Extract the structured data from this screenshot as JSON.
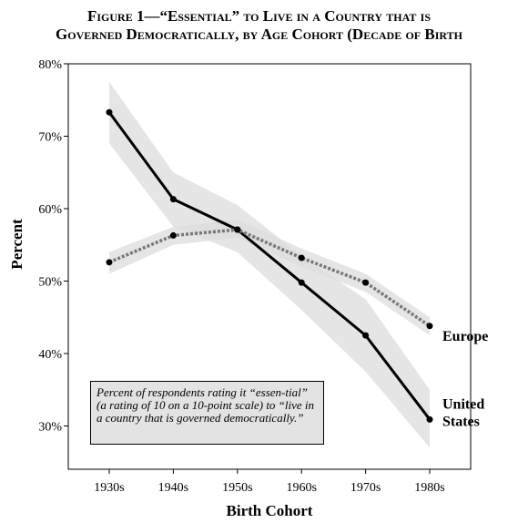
{
  "title": {
    "line1": "Figure 1—“Essential” to Live in a Country that is",
    "line2": "Governed Democratically, by Age Cohort (Decade of Birth"
  },
  "note": "Percent of respondents rating it “essen-tial” (a rating of 10 on a 10-point scale) to “live in a country that is governed democratically.”",
  "chart_data": {
    "type": "line",
    "xlabel": "Birth Cohort",
    "ylabel": "Percent",
    "categories": [
      "1930s",
      "1940s",
      "1950s",
      "1960s",
      "1970s",
      "1980s"
    ],
    "ylim": [
      25,
      80
    ],
    "yticks": [
      {
        "value": 30,
        "label": "30%"
      },
      {
        "value": 40,
        "label": "40%"
      },
      {
        "value": 50,
        "label": "50%"
      },
      {
        "value": 60,
        "label": "60%"
      },
      {
        "value": 70,
        "label": "70%"
      },
      {
        "value": 80,
        "label": "80%"
      }
    ],
    "grid": false,
    "series": [
      {
        "name": "United States",
        "label_lines": [
          "United",
          "States"
        ],
        "style": "solid",
        "color": "#000000",
        "values": [
          73.3,
          61.3,
          57.1,
          49.8,
          42.5,
          30.9
        ],
        "ci_low": [
          69.0,
          57.5,
          54.0,
          46.0,
          37.5,
          27.0
        ],
        "ci_high": [
          77.5,
          65.0,
          60.5,
          53.5,
          47.5,
          35.0
        ]
      },
      {
        "name": "Europe",
        "label_lines": [
          "Europe"
        ],
        "style": "dotted",
        "color": "#777777",
        "values": [
          52.6,
          56.3,
          57.1,
          53.2,
          49.8,
          43.8
        ],
        "ci_low": [
          51.0,
          55.0,
          56.0,
          52.0,
          48.5,
          42.5
        ],
        "ci_high": [
          54.0,
          57.5,
          58.5,
          54.5,
          51.0,
          45.0
        ]
      }
    ],
    "confidence_band_color": "#dcdcdc"
  }
}
